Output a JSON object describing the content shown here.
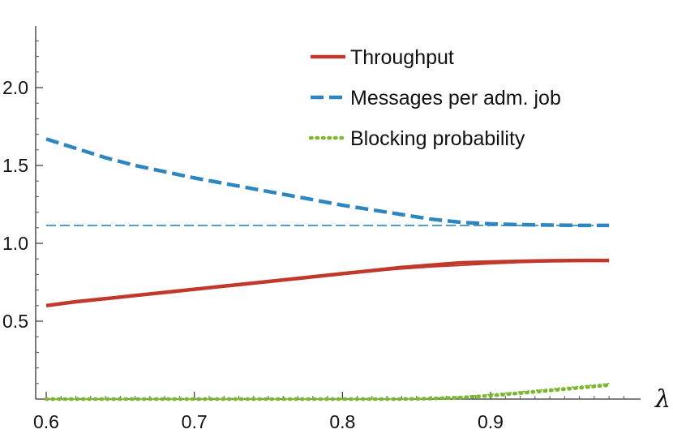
{
  "chart_data": {
    "type": "line",
    "xlabel": "λ",
    "ylabel": "",
    "xlim": [
      0.59,
      0.99
    ],
    "ylim": [
      0.0,
      2.38
    ],
    "x_ticks": [
      0.6,
      0.7,
      0.8,
      0.9
    ],
    "y_ticks": [
      0.5,
      1.0,
      1.5,
      2.0
    ],
    "x_tick_labels": [
      "0.6",
      "0.7",
      "0.8",
      "0.9"
    ],
    "y_tick_labels": [
      "0.5",
      "1.0",
      "1.5",
      "2.0"
    ],
    "legend_position": "top-right",
    "legend": [
      "Throughput",
      "Messages per adm. job",
      "Blocking probability"
    ],
    "series": [
      {
        "name": "Throughput",
        "legend_index": 0,
        "color": "#c0392b",
        "style": "solid",
        "weight": "bold",
        "x": [
          0.6,
          0.62,
          0.64,
          0.66,
          0.68,
          0.7,
          0.72,
          0.74,
          0.76,
          0.78,
          0.8,
          0.82,
          0.84,
          0.86,
          0.88,
          0.9,
          0.92,
          0.94,
          0.96,
          0.98
        ],
        "values": [
          0.6,
          0.625,
          0.645,
          0.665,
          0.685,
          0.705,
          0.725,
          0.745,
          0.765,
          0.785,
          0.805,
          0.825,
          0.845,
          0.86,
          0.875,
          0.88,
          0.885,
          0.888,
          0.89,
          0.89
        ]
      },
      {
        "name": "",
        "color": "#c0392b",
        "style": "solid",
        "weight": "thin",
        "x": [
          0.6,
          0.62,
          0.64,
          0.66,
          0.68,
          0.7,
          0.72,
          0.74,
          0.76,
          0.78,
          0.8,
          0.82,
          0.84,
          0.86,
          0.88,
          0.9,
          0.92,
          0.94,
          0.96,
          0.98
        ],
        "values": [
          0.6,
          0.62,
          0.64,
          0.66,
          0.68,
          0.7,
          0.72,
          0.74,
          0.76,
          0.78,
          0.8,
          0.82,
          0.835,
          0.848,
          0.858,
          0.868,
          0.876,
          0.882,
          0.886,
          0.888
        ]
      },
      {
        "name": "Messages per adm. job",
        "legend_index": 1,
        "color": "#2e86c1",
        "style": "dashed",
        "weight": "bold",
        "x": [
          0.6,
          0.62,
          0.64,
          0.66,
          0.68,
          0.7,
          0.72,
          0.74,
          0.76,
          0.78,
          0.8,
          0.82,
          0.84,
          0.86,
          0.88,
          0.9,
          0.92,
          0.94,
          0.96,
          0.98
        ],
        "values": [
          1.67,
          1.61,
          1.55,
          1.5,
          1.46,
          1.42,
          1.385,
          1.35,
          1.315,
          1.28,
          1.245,
          1.215,
          1.185,
          1.155,
          1.135,
          1.125,
          1.12,
          1.117,
          1.115,
          1.115
        ]
      },
      {
        "name": "",
        "color": "#2e86c1",
        "style": "dashed",
        "weight": "thin",
        "x": [
          0.6,
          0.7,
          0.8,
          0.9,
          0.98
        ],
        "values": [
          1.115,
          1.115,
          1.115,
          1.115,
          1.115
        ]
      },
      {
        "name": "Blocking probability",
        "legend_index": 2,
        "color": "#7cb82f",
        "style": "dotted",
        "weight": "bold",
        "x": [
          0.6,
          0.66,
          0.72,
          0.78,
          0.84,
          0.86,
          0.88,
          0.9,
          0.92,
          0.94,
          0.96,
          0.98
        ],
        "values": [
          0.0,
          0.0,
          0.0,
          0.0,
          0.0,
          0.003,
          0.01,
          0.022,
          0.038,
          0.055,
          0.072,
          0.09
        ]
      },
      {
        "name": "",
        "color": "#7cb82f",
        "style": "dotted",
        "weight": "thin",
        "x": [
          0.6,
          0.66,
          0.72,
          0.78,
          0.84,
          0.86,
          0.88,
          0.9,
          0.92,
          0.94,
          0.96,
          0.98
        ],
        "values": [
          0.0,
          0.0,
          0.0,
          0.0,
          0.0,
          0.005,
          0.015,
          0.03,
          0.047,
          0.065,
          0.082,
          0.1
        ]
      }
    ]
  }
}
